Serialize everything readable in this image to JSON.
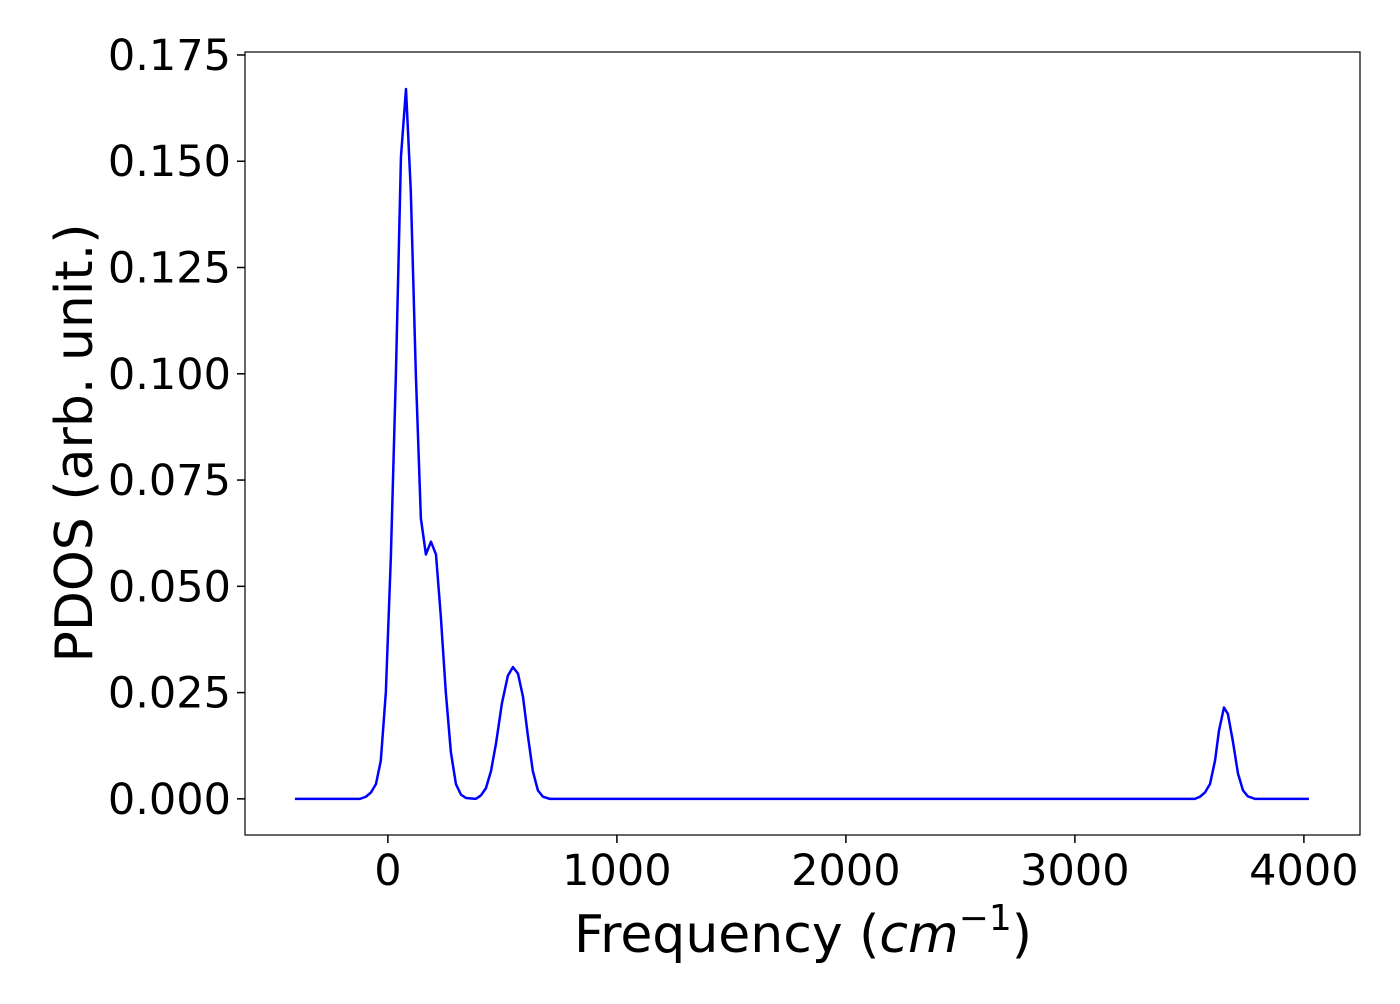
{
  "chart_data": {
    "type": "line",
    "ylabel": "PDOS (arb. unit.)",
    "xlabel_parts": [
      "Frequency (",
      "cm",
      "−1",
      ")"
    ],
    "x": [
      -406,
      -122,
      -96,
      -74,
      -52,
      -31,
      -9,
      13,
      35,
      57,
      79,
      100,
      122,
      144,
      166,
      188,
      210,
      231,
      253,
      275,
      297,
      319,
      341,
      384,
      406,
      428,
      450,
      472,
      498,
      524,
      546,
      568,
      590,
      611,
      633,
      655,
      677,
      707,
      3524,
      3546,
      3568,
      3590,
      3612,
      3629,
      3651,
      3668,
      3690,
      3712,
      3734,
      3755,
      3786,
      4022
    ],
    "series": [
      {
        "color": "#0000ff",
        "values": [
          0,
          0,
          0.0005,
          0.0015,
          0.0035,
          0.009,
          0.025,
          0.057,
          0.1,
          0.151,
          0.167,
          0.143,
          0.1,
          0.066,
          0.0575,
          0.0605,
          0.0575,
          0.043,
          0.025,
          0.011,
          0.0035,
          0.001,
          0.0002,
          0,
          0.0008,
          0.0025,
          0.0065,
          0.013,
          0.0225,
          0.029,
          0.031,
          0.0295,
          0.024,
          0.015,
          0.0065,
          0.002,
          0.0005,
          0,
          0,
          0.0005,
          0.0015,
          0.0035,
          0.009,
          0.016,
          0.0215,
          0.02,
          0.0135,
          0.006,
          0.002,
          0.0006,
          0,
          0
        ]
      }
    ],
    "xlim": [
      -624,
      4245
    ],
    "ylim": [
      -0.0085,
      0.1757
    ],
    "xticks": [
      0,
      1000,
      2000,
      3000,
      4000
    ],
    "yticks": [
      {
        "value": 0,
        "label": "0.000"
      },
      {
        "value": 0.025,
        "label": "0.025"
      },
      {
        "value": 0.05,
        "label": "0.050"
      },
      {
        "value": 0.075,
        "label": "0.075"
      },
      {
        "value": 0.1,
        "label": "0.100"
      },
      {
        "value": 0.125,
        "label": "0.125"
      },
      {
        "value": 0.15,
        "label": "0.150"
      },
      {
        "value": 0.175,
        "label": "0.175"
      }
    ]
  }
}
